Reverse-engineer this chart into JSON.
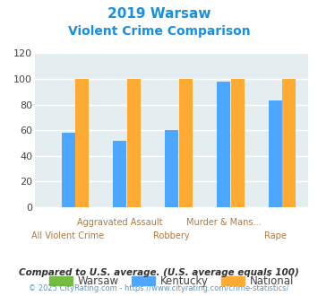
{
  "title_line1": "2019 Warsaw",
  "title_line2": "Violent Crime Comparison",
  "categories": [
    "All Violent Crime",
    "Aggravated Assault",
    "Robbery",
    "Murder & Mans...",
    "Rape"
  ],
  "warsaw_values": [
    0,
    0,
    0,
    0,
    0
  ],
  "kentucky_values": [
    58,
    52,
    60,
    98,
    83
  ],
  "national_values": [
    100,
    100,
    100,
    100,
    100
  ],
  "colors": {
    "warsaw": "#76bb42",
    "kentucky": "#4da6ff",
    "national": "#ffaa33"
  },
  "ylim": [
    0,
    120
  ],
  "yticks": [
    0,
    20,
    40,
    60,
    80,
    100,
    120
  ],
  "background_color": "#e4eef0",
  "grid_color": "#ffffff",
  "title_color": "#1a8fe0",
  "xlabel_color_top": "#b07840",
  "xlabel_color_bottom": "#b07840",
  "footer_text1": "Compared to U.S. average. (U.S. average equals 100)",
  "footer_text2": "© 2025 CityRating.com - https://www.cityrating.com/crime-statistics/",
  "footer_color1": "#333333",
  "footer_color2": "#5599cc"
}
